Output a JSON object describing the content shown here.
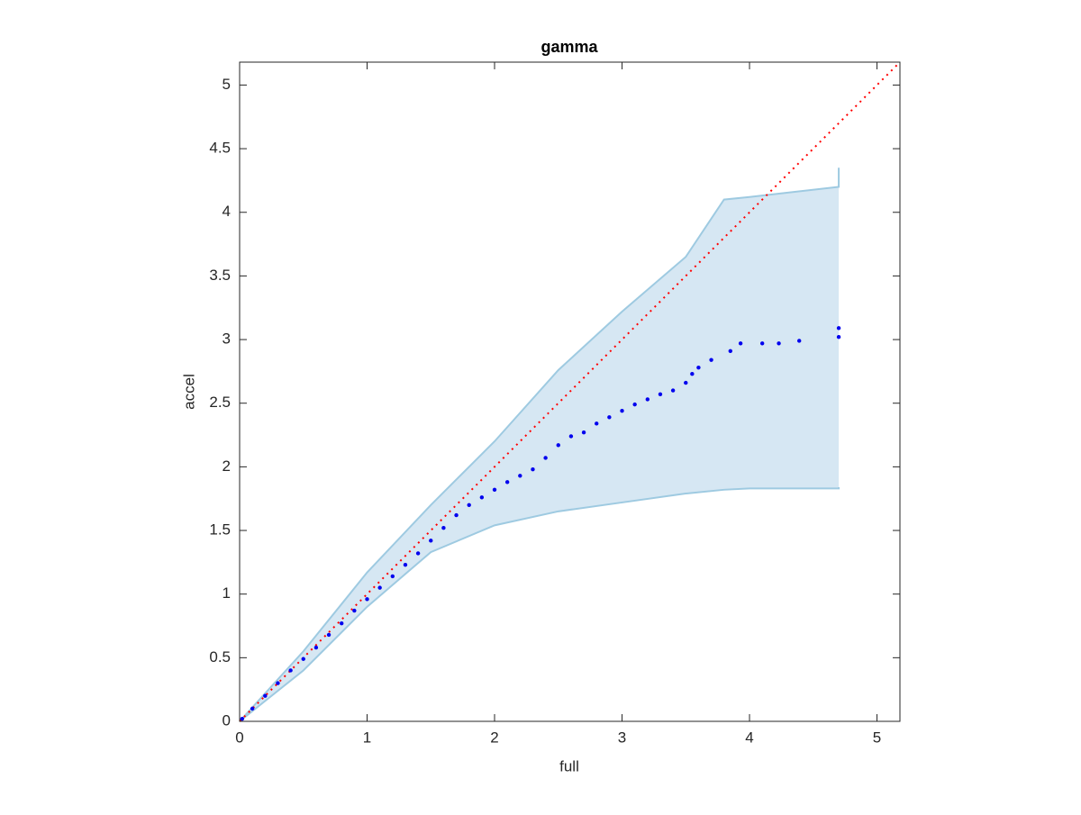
{
  "chart_data": {
    "type": "scatter",
    "title": "gamma",
    "x_label": "full",
    "y_label": "accel",
    "xlim": [
      0,
      5.18
    ],
    "ylim": [
      0,
      5.18
    ],
    "xticks": [
      0,
      1,
      2,
      3,
      4,
      5
    ],
    "yticks": [
      0,
      0.5,
      1,
      1.5,
      2,
      2.5,
      3,
      3.5,
      4,
      4.5,
      5
    ],
    "points": {
      "color": "#0000ee",
      "x": [
        0.02,
        0.1,
        0.2,
        0.3,
        0.4,
        0.5,
        0.6,
        0.7,
        0.8,
        0.9,
        1.0,
        1.1,
        1.2,
        1.3,
        1.4,
        1.5,
        1.6,
        1.7,
        1.8,
        1.9,
        2.0,
        2.1,
        2.2,
        2.3,
        2.4,
        2.5,
        2.6,
        2.7,
        2.8,
        2.9,
        3.0,
        3.1,
        3.2,
        3.3,
        3.4,
        3.5,
        3.55,
        3.6,
        3.7,
        3.85,
        3.93,
        4.1,
        4.23,
        4.39,
        4.7,
        4.7
      ],
      "values": [
        0.02,
        0.1,
        0.2,
        0.3,
        0.4,
        0.49,
        0.58,
        0.68,
        0.77,
        0.87,
        0.96,
        1.05,
        1.14,
        1.23,
        1.32,
        1.42,
        1.52,
        1.62,
        1.7,
        1.76,
        1.82,
        1.88,
        1.93,
        1.98,
        2.07,
        2.17,
        2.24,
        2.27,
        2.34,
        2.39,
        2.44,
        2.49,
        2.53,
        2.57,
        2.6,
        2.66,
        2.73,
        2.78,
        2.84,
        2.91,
        2.97,
        2.97,
        2.97,
        2.99,
        3.02,
        3.09
      ]
    },
    "band": {
      "color": "#9ecae1",
      "fill": "#d6e7f3",
      "x": [
        0,
        0.5,
        1.0,
        1.5,
        2.0,
        2.5,
        3.0,
        3.5,
        3.8,
        4.0,
        4.7,
        4.7
      ],
      "upper": [
        0,
        0.55,
        1.17,
        1.7,
        2.2,
        2.76,
        3.22,
        3.65,
        4.1,
        4.12,
        4.2,
        4.35
      ],
      "lower": [
        0,
        0.4,
        0.9,
        1.33,
        1.54,
        1.65,
        1.72,
        1.79,
        1.82,
        1.83,
        1.83,
        1.84
      ]
    },
    "reference": {
      "color": "#ff0000",
      "x": [
        0,
        5.18
      ],
      "values": [
        0,
        5.18
      ]
    }
  }
}
